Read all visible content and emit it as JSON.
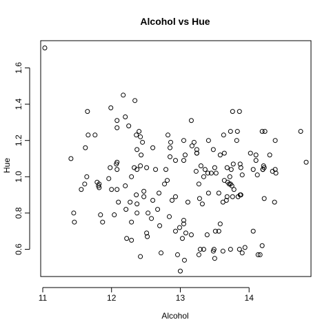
{
  "chart_data": {
    "type": "scatter",
    "title": "Alcohol vs Hue",
    "xlabel": "Alcohol",
    "ylabel": "Hue",
    "xlim": [
      10.97,
      14.9
    ],
    "ylim": [
      0.45,
      1.75
    ],
    "x_ticks": [
      11,
      12,
      13,
      14
    ],
    "y_ticks": [
      0.6,
      0.8,
      1.0,
      1.2,
      1.4,
      1.6
    ],
    "x_tick_labels": [
      "11",
      "12",
      "13",
      "14"
    ],
    "y_tick_labels": [
      "0.6",
      "0.8",
      "1.0",
      "1.2",
      "1.4",
      "1.6"
    ],
    "grid": false,
    "point_style": "open-circle",
    "points": [
      [
        11.03,
        1.71
      ],
      [
        11.41,
        1.1
      ],
      [
        11.45,
        0.8
      ],
      [
        11.46,
        0.75
      ],
      [
        11.56,
        0.93
      ],
      [
        11.61,
        0.96
      ],
      [
        11.62,
        1.16
      ],
      [
        11.64,
        1.0
      ],
      [
        11.65,
        1.36
      ],
      [
        11.66,
        1.23
      ],
      [
        11.76,
        1.23
      ],
      [
        11.79,
        0.97
      ],
      [
        11.81,
        0.95
      ],
      [
        11.82,
        0.96
      ],
      [
        11.82,
        0.94
      ],
      [
        11.84,
        0.79
      ],
      [
        11.87,
        0.75
      ],
      [
        11.96,
        0.99
      ],
      [
        11.98,
        1.05
      ],
      [
        11.99,
        1.38
      ],
      [
        12.0,
        0.93
      ],
      [
        12.04,
        0.79
      ],
      [
        12.07,
        1.07
      ],
      [
        12.08,
        1.27
      ],
      [
        12.08,
        1.31
      ],
      [
        12.08,
        1.08
      ],
      [
        12.08,
        0.93
      ],
      [
        12.1,
        0.86
      ],
      [
        12.17,
        1.45
      ],
      [
        12.2,
        1.33
      ],
      [
        12.21,
        0.82
      ],
      [
        12.22,
        0.66
      ],
      [
        12.25,
        1.28
      ],
      [
        12.27,
        0.86
      ],
      [
        12.29,
        0.75
      ],
      [
        12.29,
        0.65
      ],
      [
        12.29,
        1.0
      ],
      [
        12.33,
        1.05
      ],
      [
        12.34,
        1.42
      ],
      [
        12.36,
        1.23
      ],
      [
        12.36,
        0.9
      ],
      [
        12.37,
        1.15
      ],
      [
        12.37,
        0.8
      ],
      [
        12.37,
        1.04
      ],
      [
        12.4,
        1.25
      ],
      [
        12.42,
        0.56
      ],
      [
        12.42,
        1.06
      ],
      [
        12.42,
        1.22
      ],
      [
        12.43,
        1.12
      ],
      [
        12.45,
        1.19
      ],
      [
        12.47,
        0.92
      ],
      [
        12.47,
        0.89
      ],
      [
        12.51,
        1.05
      ],
      [
        12.51,
        0.69
      ],
      [
        12.52,
        0.67
      ],
      [
        12.53,
        0.8
      ],
      [
        12.58,
        0.77
      ],
      [
        12.6,
        1.16
      ],
      [
        12.6,
        0.87
      ],
      [
        12.64,
        1.04
      ],
      [
        12.67,
        0.82
      ],
      [
        12.69,
        0.91
      ],
      [
        12.7,
        0.73
      ],
      [
        12.72,
        0.58
      ],
      [
        12.77,
        0.96
      ],
      [
        12.79,
        1.04
      ],
      [
        12.81,
        0.98
      ],
      [
        12.82,
        1.23
      ],
      [
        12.84,
        0.78
      ],
      [
        12.85,
        1.16
      ],
      [
        12.86,
        1.19
      ],
      [
        12.88,
        0.87
      ],
      [
        12.93,
        0.89
      ],
      [
        12.93,
        0.7
      ],
      [
        12.96,
        0.57
      ],
      [
        12.99,
        0.72
      ],
      [
        13.0,
        0.48
      ],
      [
        13.03,
        0.66
      ],
      [
        13.05,
        0.74
      ],
      [
        13.05,
        0.76
      ],
      [
        13.05,
        1.09
      ],
      [
        13.06,
        0.54
      ],
      [
        13.07,
        1.12
      ],
      [
        13.08,
        0.69
      ],
      [
        13.11,
        0.86
      ],
      [
        13.16,
        0.68
      ],
      [
        13.16,
        1.31
      ],
      [
        13.17,
        1.17
      ],
      [
        13.2,
        1.19
      ],
      [
        13.23,
        1.03
      ],
      [
        13.24,
        1.15
      ],
      [
        13.24,
        1.13
      ],
      [
        13.27,
        0.57
      ],
      [
        13.28,
        0.88
      ],
      [
        13.29,
        0.6
      ],
      [
        13.3,
        1.06
      ],
      [
        13.32,
        0.85
      ],
      [
        13.34,
        0.6
      ],
      [
        13.36,
        1.04
      ],
      [
        13.39,
        0.68
      ],
      [
        13.4,
        1.02
      ],
      [
        13.41,
        1.2
      ],
      [
        13.45,
        1.02
      ],
      [
        13.48,
        1.15
      ],
      [
        13.48,
        0.59
      ],
      [
        13.49,
        0.6
      ],
      [
        13.5,
        0.55
      ],
      [
        13.5,
        1.05
      ],
      [
        13.51,
        0.7
      ],
      [
        13.52,
        1.02
      ],
      [
        13.56,
        0.7
      ],
      [
        13.56,
        0.91
      ],
      [
        13.58,
        1.12
      ],
      [
        13.58,
        0.74
      ],
      [
        13.62,
        0.86
      ],
      [
        13.63,
        1.23
      ],
      [
        13.64,
        1.13
      ],
      [
        13.67,
        0.87
      ],
      [
        13.68,
        0.89
      ],
      [
        13.68,
        1.05
      ],
      [
        13.69,
        0.97
      ],
      [
        13.71,
        0.96
      ],
      [
        13.72,
        1.0
      ],
      [
        13.73,
        0.96
      ],
      [
        13.74,
        1.04
      ],
      [
        13.75,
        0.95
      ],
      [
        13.76,
        0.89
      ],
      [
        13.77,
        1.07
      ],
      [
        13.78,
        0.93
      ],
      [
        13.82,
        1.2
      ],
      [
        13.83,
        1.25
      ],
      [
        13.84,
        0.89
      ],
      [
        13.86,
        0.6
      ],
      [
        13.87,
        0.9
      ],
      [
        13.88,
        1.05
      ],
      [
        13.9,
        1.01
      ],
      [
        13.94,
        0.61
      ],
      [
        14.02,
        1.13
      ],
      [
        14.06,
        0.7
      ],
      [
        14.1,
        1.12
      ],
      [
        14.12,
        1.01
      ],
      [
        14.13,
        0.57
      ],
      [
        14.16,
        0.57
      ],
      [
        14.19,
        1.25
      ],
      [
        14.2,
        1.04
      ],
      [
        14.21,
        1.06
      ],
      [
        14.22,
        0.88
      ],
      [
        14.23,
        1.25
      ],
      [
        14.3,
        1.12
      ],
      [
        14.34,
        1.03
      ],
      [
        14.37,
        0.86
      ],
      [
        14.38,
        1.2
      ],
      [
        14.39,
        1.02
      ],
      [
        14.75,
        1.25
      ],
      [
        14.83,
        1.08
      ],
      [
        13.62,
        0.59
      ],
      [
        13.73,
        1.25
      ],
      [
        14.22,
        1.05
      ],
      [
        14.06,
        1.04
      ],
      [
        14.38,
        1.04
      ],
      [
        14.1,
        1.09
      ],
      [
        13.05,
        1.2
      ],
      [
        13.87,
        1.07
      ],
      [
        13.64,
        0.98
      ],
      [
        13.41,
        0.91
      ],
      [
        14.2,
        1.04
      ],
      [
        12.2,
        0.95
      ],
      [
        13.86,
        1.36
      ],
      [
        13.24,
        1.13
      ],
      [
        13.88,
        0.9
      ],
      [
        13.9,
        0.58
      ],
      [
        14.19,
        0.62
      ],
      [
        12.85,
        1.11
      ],
      [
        13.27,
        0.96
      ],
      [
        13.76,
        1.36
      ],
      [
        12.93,
        1.09
      ],
      [
        12.37,
        0.85
      ],
      [
        13.34,
        1.0
      ],
      [
        13.73,
        0.6
      ],
      [
        12.08,
        1.04
      ]
    ]
  }
}
